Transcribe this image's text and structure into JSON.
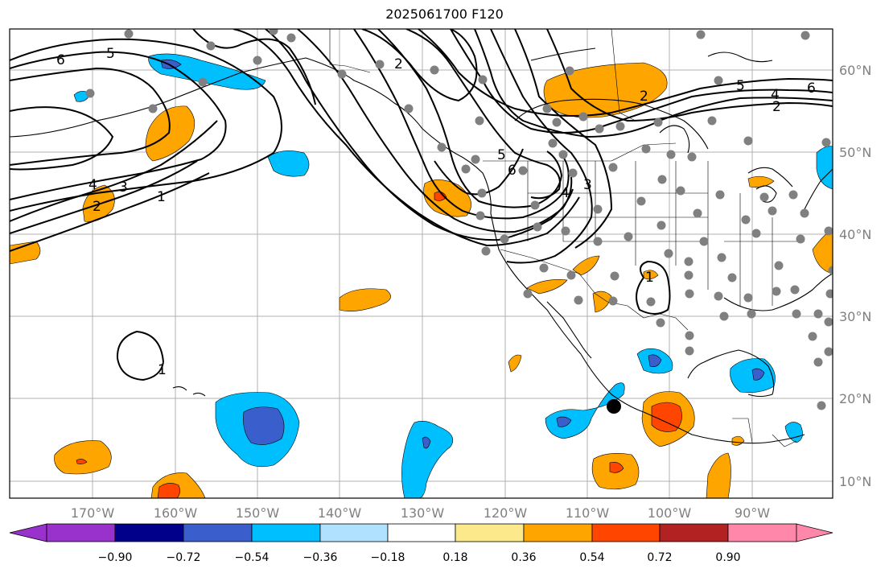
{
  "title": "2025061700 F120",
  "lon_labels": [
    "170°W",
    "160°W",
    "150°W",
    "140°W",
    "130°W",
    "120°W",
    "110°W",
    "100°W",
    "90°W"
  ],
  "lat_labels": [
    "60°N",
    "50°N",
    "40°N",
    "30°N",
    "20°N",
    "10°N"
  ],
  "colorbar": {
    "ticks": [
      "−0.90",
      "−0.72",
      "−0.54",
      "−0.36",
      "−0.18",
      "0.18",
      "0.36",
      "0.54",
      "0.72",
      "0.90"
    ],
    "colors": [
      "#9932cc",
      "#00008b",
      "#3a5fcd",
      "#00bfff",
      "#b0e2ff",
      "#ffffff",
      "#fbe98b",
      "#ffa500",
      "#ff4500",
      "#b22222",
      "#ff88aa"
    ]
  },
  "contour_labels": [
    "6",
    "5",
    "4",
    "3",
    "2",
    "1",
    "2",
    "6",
    "5",
    "4",
    "2",
    "6",
    "5",
    "4",
    "3",
    "2",
    "1",
    "1"
  ],
  "colors": {
    "positive": "#ffa500",
    "positive_strong": "#ff4500",
    "negative": "#00bfff",
    "negative_strong": "#3a5fcd",
    "stations": "#808080"
  }
}
